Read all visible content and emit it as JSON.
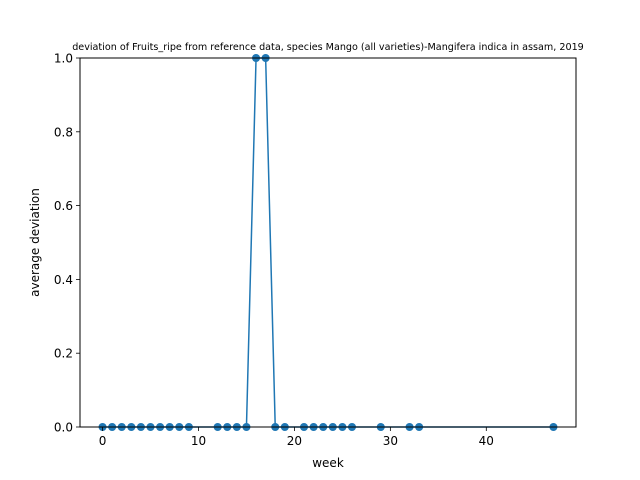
{
  "chart_data": {
    "type": "line",
    "title": "deviation of Fruits_ripe from reference data, species Mango (all varieties)-Mangifera indica in assam, 2019",
    "xlabel": "week",
    "ylabel": "average deviation",
    "xlim": [
      -2.35,
      49.35
    ],
    "ylim": [
      0,
      1.0
    ],
    "xticks": [
      0,
      10,
      20,
      30,
      40
    ],
    "yticks": [
      0.0,
      0.2,
      0.4,
      0.6,
      0.8,
      1.0
    ],
    "ytick_labels": [
      "0.0",
      "0.2",
      "0.4",
      "0.6",
      "0.8",
      "1.0"
    ],
    "grid": false,
    "series": [
      {
        "color": "#1f77b4",
        "marker": "circle",
        "x": [
          0,
          1,
          2,
          3,
          4,
          5,
          6,
          7,
          8,
          9,
          12,
          13,
          14,
          15,
          16,
          17,
          18,
          19,
          21,
          22,
          23,
          24,
          25,
          26,
          29,
          32,
          33,
          47
        ],
        "y": [
          0,
          0,
          0,
          0,
          0,
          0,
          0,
          0,
          0,
          0,
          0,
          0,
          0,
          0,
          1,
          1,
          0,
          0,
          0,
          0,
          0,
          0,
          0,
          0,
          0,
          0,
          0,
          0
        ]
      }
    ]
  }
}
